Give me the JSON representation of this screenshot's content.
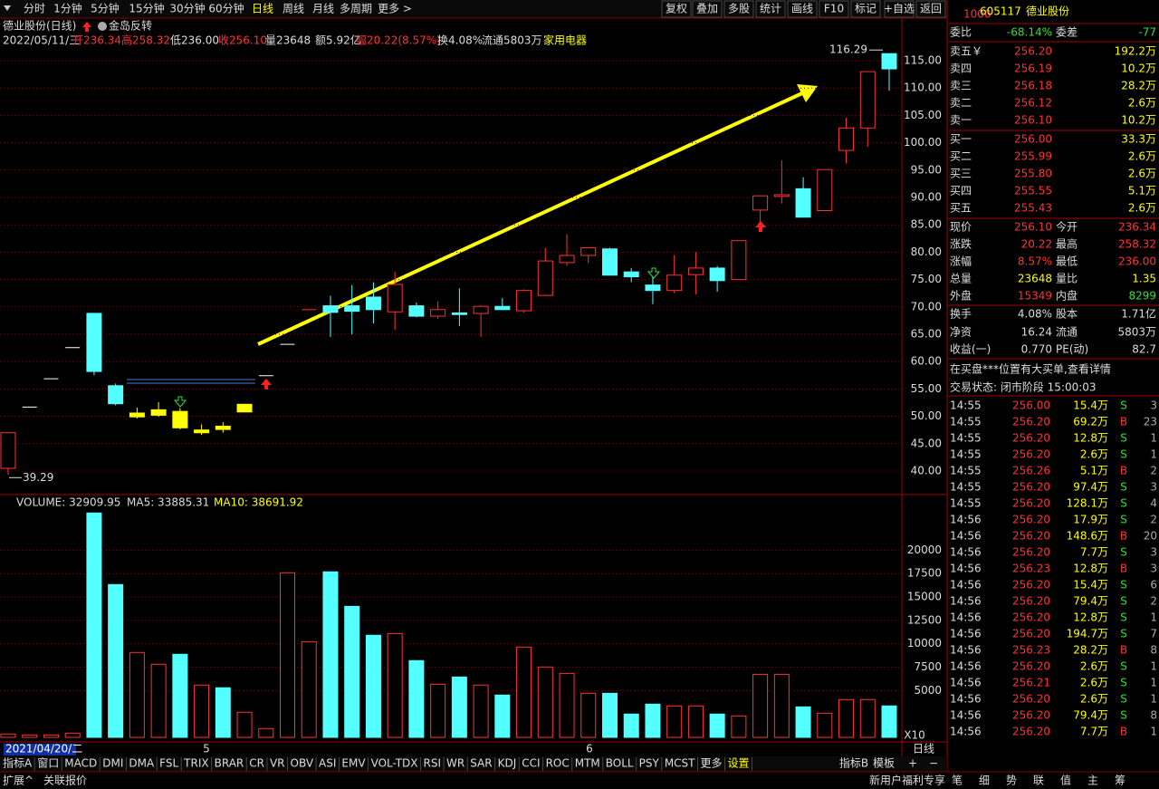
{
  "toolbar": {
    "left": [
      "分时",
      "1分钟",
      "5分钟",
      "15分钟",
      "30分钟",
      "60分钟",
      "日线",
      "周线",
      "月线",
      "多周期",
      "更多 >"
    ],
    "right": [
      "复权",
      "叠加",
      "多股",
      "统计",
      "画线",
      "F10",
      "标记",
      "+自选",
      "返回"
    ]
  },
  "info": {
    "name": "德业股份(日线)",
    "signal": "金岛反转",
    "line": [
      "2022/05/11/三",
      "开236.34",
      "高258.32",
      "低236.00",
      "收256.10",
      "量23648",
      "额5.92亿",
      "幅20.22(8.57%)",
      "换4.08%",
      "流通5803万",
      "家用电器"
    ]
  },
  "chart_data": [
    {
      "type": "candlestick",
      "ylim": [
        35.86,
        122.45
      ],
      "yticks": [
        {
          "value": 40,
          "label": "40.00"
        },
        {
          "value": 45,
          "label": "45.00"
        },
        {
          "value": 50,
          "label": "50.00"
        },
        {
          "value": 55,
          "label": "55.00"
        },
        {
          "value": 60,
          "label": "60.00"
        },
        {
          "value": 65,
          "label": "65.00"
        },
        {
          "value": 70,
          "label": "70.00"
        },
        {
          "value": 75,
          "label": "75.00"
        },
        {
          "value": 80,
          "label": "80.00"
        },
        {
          "value": 85,
          "label": "85.00"
        },
        {
          "value": 90,
          "label": "90.00"
        },
        {
          "value": 95,
          "label": "95.00"
        },
        {
          "value": 100,
          "label": "100.00"
        },
        {
          "value": 105,
          "label": "105.00"
        },
        {
          "value": 110,
          "label": "110.00"
        },
        {
          "value": 115,
          "label": "115.00"
        }
      ],
      "grid": true,
      "annotations": {
        "high": {
          "value": 116.29,
          "label": "116.29"
        },
        "low": {
          "value": 39.29,
          "label": "39.29"
        }
      },
      "open": [
        40.5,
        51.7,
        56.87,
        62.56,
        68.82,
        55.6,
        49.9,
        51.2,
        50.9,
        47.5,
        47.6,
        50.8,
        57.42,
        63.16,
        69.48,
        70.2,
        70.2,
        71.8,
        69.1,
        70.2,
        68.3,
        68.9,
        68.8,
        70.1,
        69.3,
        72.1,
        78.1,
        79.4,
        80.6,
        76.4,
        74,
        73,
        75.9,
        77.1,
        75,
        87.7,
        90.2,
        91.6,
        87.6,
        98.6,
        102.7,
        116.29
      ],
      "high": [
        47,
        51.7,
        56.87,
        62.56,
        68.82,
        56,
        51.6,
        52.6,
        51.5,
        48.5,
        48.9,
        52.3,
        57.42,
        63.16,
        69.48,
        72,
        74,
        74.5,
        76.4,
        70.8,
        71,
        73.4,
        70.3,
        71.6,
        73.2,
        80.8,
        83.3,
        80.8,
        80.8,
        77.1,
        75.5,
        79.5,
        80,
        77.5,
        82.1,
        90.4,
        96.8,
        93.7,
        95.1,
        104.6,
        113,
        116.29
      ],
      "low": [
        39.29,
        51.7,
        56.87,
        62.56,
        57.5,
        52,
        49.6,
        49.9,
        47.6,
        46.6,
        47,
        50.8,
        57.42,
        63.16,
        69.48,
        64.5,
        65,
        67,
        65.8,
        68.1,
        67.8,
        66.5,
        64.5,
        69.5,
        69,
        72,
        77.5,
        78,
        75.8,
        74.5,
        70.5,
        72.5,
        72.3,
        72.8,
        75,
        84.7,
        88.9,
        86.4,
        87.6,
        96.2,
        99.3,
        109.5
      ],
      "close": [
        47,
        51.7,
        56.87,
        62.56,
        58.2,
        52.3,
        50.6,
        50.2,
        47.9,
        47,
        48.2,
        52.2,
        57.42,
        63.16,
        69.48,
        69,
        69.2,
        69.5,
        74.1,
        68.3,
        69.5,
        68.6,
        70.1,
        69.5,
        73,
        78.4,
        79.4,
        80.8,
        75.8,
        75.5,
        73,
        75.8,
        77.1,
        74.8,
        82.1,
        90.3,
        90.5,
        86.4,
        95.1,
        102.7,
        113,
        113.5
      ],
      "colors": [
        "#ff3232",
        "#ffffff",
        "#ffffff",
        "#ffffff",
        "#54ffff",
        "#54ffff",
        "#ffff00",
        "#ffff00",
        "#ffff00",
        "#ffff00",
        "#ffff00",
        "#ffff00",
        "#ffffff",
        "#ffffff",
        "#ff3232",
        "#54ffff",
        "#54ffff",
        "#54ffff",
        "#ff3232",
        "#54ffff",
        "#ff3232",
        "#54ffff",
        "#ff3232",
        "#54ffff",
        "#ff3232",
        "#ff3232",
        "#ff3232",
        "#ff3232",
        "#54ffff",
        "#54ffff",
        "#54ffff",
        "#ff3232",
        "#ff3232",
        "#54ffff",
        "#ff3232",
        "#ff3232",
        "#ff3232",
        "#54ffff",
        "#ff3232",
        "#ff3232",
        "#ff3232",
        "#54ffff"
      ]
    },
    {
      "type": "bar",
      "title": "VOLUME: 32909.95",
      "legend": [
        "MA5: 33885.31",
        "MA10: 38691.92"
      ],
      "ylim": [
        0,
        25750
      ],
      "yticks": [
        5000,
        7500,
        10000,
        12500,
        15000,
        17500,
        20000
      ],
      "grid": true,
      "unit": "X10",
      "values": [
        360,
        260,
        260,
        450,
        23980,
        16330,
        9070,
        7810,
        8880,
        5590,
        5300,
        2680,
        940,
        17590,
        10230,
        17690,
        14000,
        10910,
        11100,
        8200,
        5680,
        6450,
        5590,
        4520,
        9650,
        7520,
        6840,
        4710,
        4710,
        2490,
        3550,
        3360,
        3360,
        2490,
        2290,
        6740,
        6740,
        3260,
        2580,
        4040,
        4040,
        3360
      ],
      "colors": [
        "#ff3232",
        "#ff3232",
        "#ff3232",
        "#ff3232",
        "#54ffff",
        "#54ffff",
        "#ff3232",
        "#ff3232",
        "#54ffff",
        "#ff3232",
        "#54ffff",
        "#ff3232",
        "#ff3232",
        "#ff3232",
        "#ff3232",
        "#54ffff",
        "#54ffff",
        "#54ffff",
        "#ff3232",
        "#54ffff",
        "#ff3232",
        "#54ffff",
        "#ff3232",
        "#54ffff",
        "#ff3232",
        "#ff3232",
        "#ff3232",
        "#ff3232",
        "#54ffff",
        "#54ffff",
        "#54ffff",
        "#ff3232",
        "#ff3232",
        "#54ffff",
        "#ff3232",
        "#ff3232",
        "#ff3232",
        "#54ffff",
        "#ff3232",
        "#ff3232",
        "#ff3232",
        "#54ffff"
      ]
    }
  ],
  "xaxis": {
    "start": "2021/04/20/二",
    "months": [
      "5",
      "6"
    ],
    "period": "日线"
  },
  "tabs": [
    "指标A",
    "窗口",
    "MACD",
    "DMI",
    "DMA",
    "FSL",
    "TRIX",
    "BRAR",
    "CR",
    "VR",
    "OBV",
    "ASI",
    "EMV",
    "VOL-TDX",
    "RSI",
    "WR",
    "SAR",
    "KDJ",
    "CCI",
    "ROC",
    "MTM",
    "BOLL",
    "PSY",
    "MCST",
    "更多",
    "设置"
  ],
  "tabs_right": [
    "指标B",
    "模板",
    "+",
    "−"
  ],
  "status": {
    "left": [
      "扩展^",
      "关联报价"
    ],
    "right": "新用户福利专享",
    "side": [
      "笔",
      "细",
      "势",
      "联",
      "值",
      "主",
      "筹"
    ]
  },
  "quote": {
    "badge": "1000",
    "code": "605117",
    "name": "德业股份",
    "ratio": [
      "委比",
      "-68.14%",
      "委差",
      "-77"
    ],
    "sell": [
      [
        "卖五￥",
        "256.20",
        "192.2万"
      ],
      [
        "卖四",
        "256.19",
        "10.2万"
      ],
      [
        "卖三",
        "256.18",
        "28.2万"
      ],
      [
        "卖二",
        "256.12",
        "2.6万"
      ],
      [
        "卖一",
        "256.10",
        "10.2万"
      ]
    ],
    "buy": [
      [
        "买一",
        "256.00",
        "33.3万"
      ],
      [
        "买二",
        "255.99",
        "2.6万"
      ],
      [
        "买三",
        "255.80",
        "2.6万"
      ],
      [
        "买四",
        "255.55",
        "5.1万"
      ],
      [
        "买五",
        "255.43",
        "2.6万"
      ]
    ],
    "stats": [
      [
        "现价",
        "256.10",
        "今开",
        "236.34"
      ],
      [
        "涨跌",
        "20.22",
        "最高",
        "258.32"
      ],
      [
        "涨幅",
        "8.57%",
        "最低",
        "236.00"
      ],
      [
        "总量",
        "23648",
        "量比",
        "1.35"
      ],
      [
        "外盘",
        "15349",
        "内盘",
        "8299"
      ],
      [
        "换手",
        "4.08%",
        "股本",
        "1.71亿"
      ],
      [
        "净资",
        "16.24",
        "流通",
        "5803万"
      ],
      [
        "收益(一)",
        "0.770",
        "PE(动)",
        "82.7"
      ]
    ],
    "notice": "在买盘***位置有大买单,查看详情",
    "state": "交易状态: 闭市阶段 15:00:03"
  },
  "trades": [
    [
      "14:55",
      "256.00",
      "15.4万",
      "S",
      "3"
    ],
    [
      "14:55",
      "256.20",
      "69.2万",
      "B",
      "23"
    ],
    [
      "14:55",
      "256.20",
      "12.8万",
      "S",
      "1"
    ],
    [
      "14:55",
      "256.20",
      "2.6万",
      "S",
      "1"
    ],
    [
      "14:55",
      "256.26",
      "5.1万",
      "B",
      "2"
    ],
    [
      "14:55",
      "256.20",
      "97.4万",
      "S",
      "3"
    ],
    [
      "14:55",
      "256.20",
      "128.1万",
      "S",
      "4"
    ],
    [
      "14:56",
      "256.20",
      "17.9万",
      "S",
      "2"
    ],
    [
      "14:56",
      "256.20",
      "148.6万",
      "B",
      "20"
    ],
    [
      "14:56",
      "256.20",
      "7.7万",
      "S",
      "3"
    ],
    [
      "14:56",
      "256.23",
      "12.8万",
      "B",
      "3"
    ],
    [
      "14:56",
      "256.20",
      "15.4万",
      "S",
      "6"
    ],
    [
      "14:56",
      "256.20",
      "79.4万",
      "S",
      "2"
    ],
    [
      "14:56",
      "256.20",
      "12.8万",
      "S",
      "1"
    ],
    [
      "14:56",
      "256.20",
      "194.7万",
      "S",
      "7"
    ],
    [
      "14:56",
      "256.23",
      "28.2万",
      "B",
      "8"
    ],
    [
      "14:56",
      "256.20",
      "2.6万",
      "S",
      "1"
    ],
    [
      "14:56",
      "256.21",
      "2.6万",
      "S",
      "1"
    ],
    [
      "14:56",
      "256.20",
      "2.6万",
      "S",
      "1"
    ],
    [
      "14:56",
      "256.20",
      "79.4万",
      "S",
      "8"
    ],
    [
      "14:56",
      "256.20",
      "7.7万",
      "B",
      "1"
    ]
  ]
}
